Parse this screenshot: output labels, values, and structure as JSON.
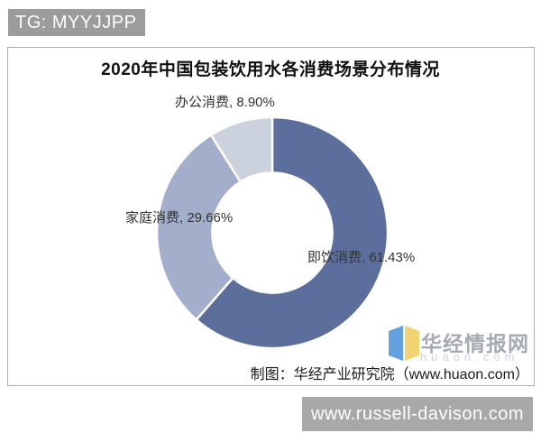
{
  "overlays": {
    "top_badge": "TG: MYYJJPP",
    "bottom_badge": "www.russell-davison.com"
  },
  "watermark": {
    "site_name": "华经情报网",
    "site_url": "huaon.com",
    "logo_blue": "#64a0e0",
    "logo_yellow": "#f2d374"
  },
  "chart_data": {
    "type": "pie",
    "subtype": "donut",
    "title": "2020年中国包装饮用水各消费场景分布情况",
    "categories": [
      "即饮消费",
      "家庭消费",
      "办公消费"
    ],
    "values": [
      61.43,
      29.66,
      8.9
    ],
    "labels": [
      "即饮消费, 61.43%",
      "家庭消费, 29.66%",
      "办公消费, 8.90%"
    ],
    "colors": [
      "#5c6f9c",
      "#a3aecb",
      "#cbd1dd"
    ],
    "slice_border_color": "#ffffff",
    "start_angle": "top",
    "direction": "clockwise",
    "inner_radius_ratio": 0.52,
    "legend_position": "none",
    "source": "制图：华经产业研究院（www.huaon.com）"
  }
}
